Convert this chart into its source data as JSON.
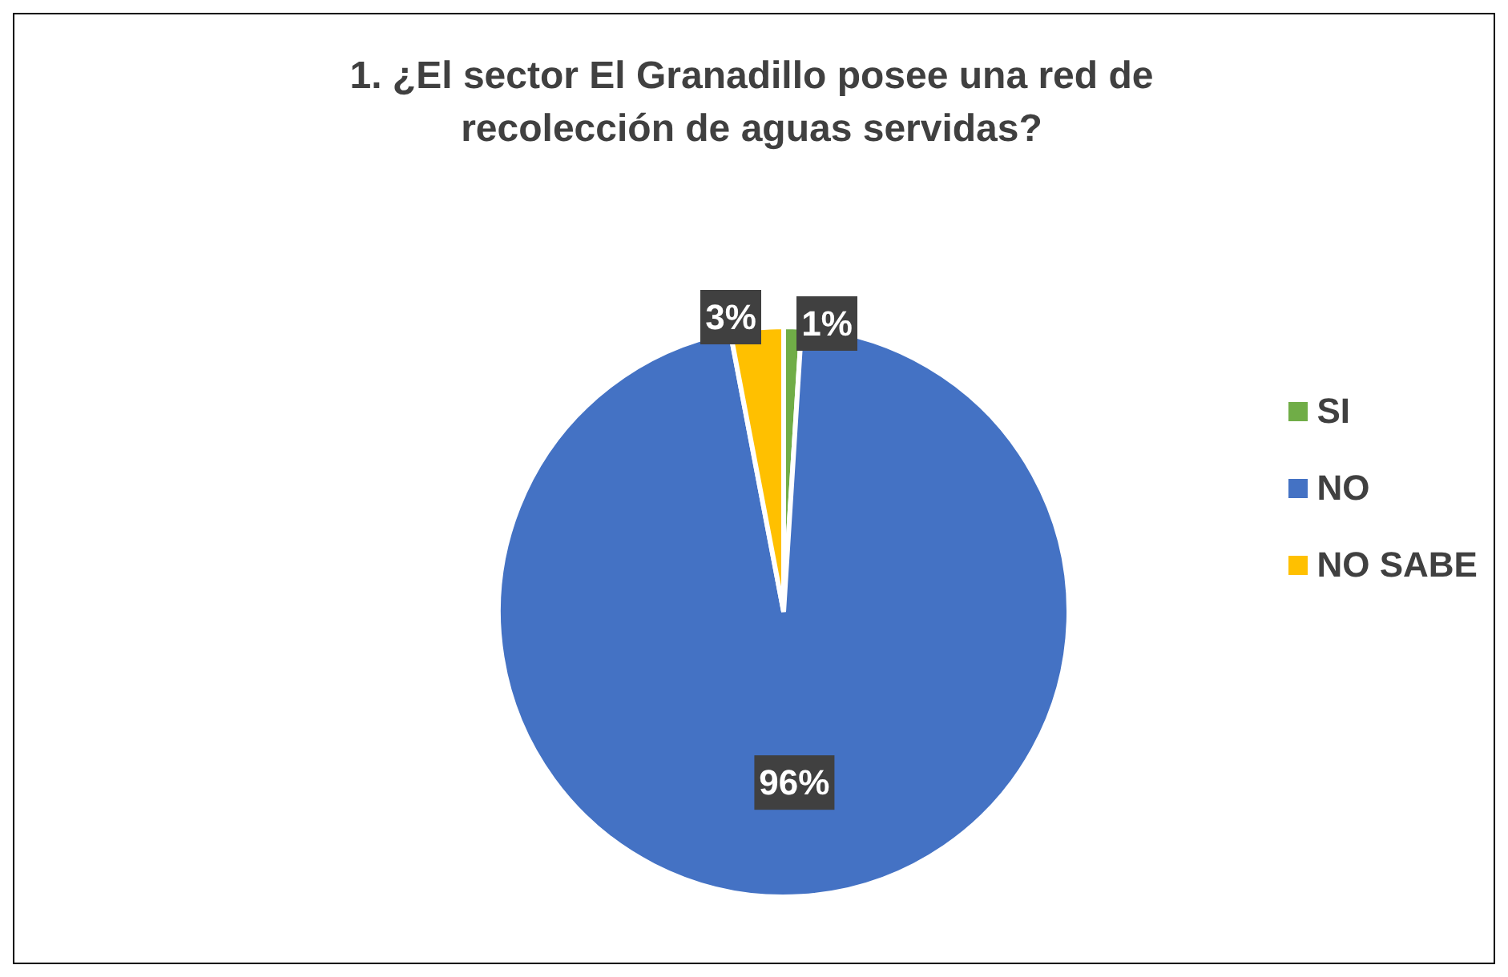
{
  "chart_data": {
    "type": "pie",
    "title": "1.  ¿El sector El Granadillo posee una red de recolección de aguas servidas?",
    "categories": [
      "SI",
      "NO",
      "NO SABE"
    ],
    "values": [
      1,
      96,
      3
    ],
    "colors": [
      "#70ad47",
      "#4472c4",
      "#ffc000"
    ],
    "value_labels": [
      "1%",
      "96%",
      "3%"
    ],
    "legend": "right"
  }
}
